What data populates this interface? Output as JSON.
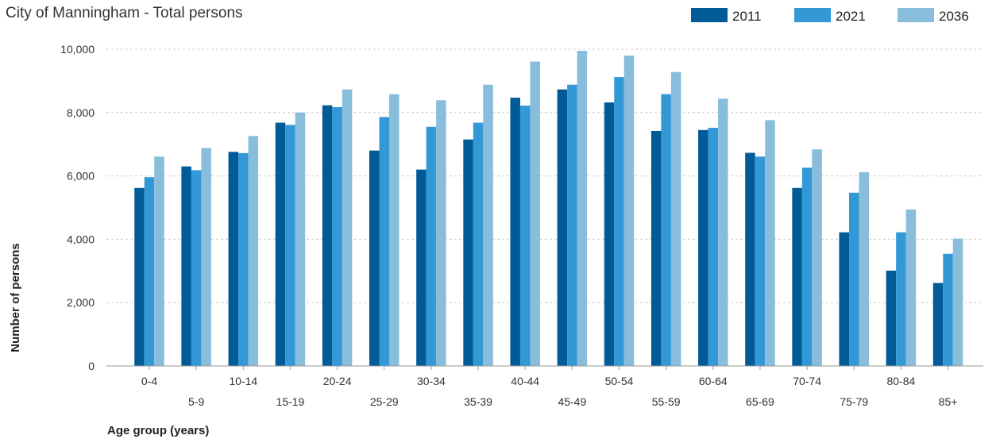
{
  "chart_data": {
    "type": "bar",
    "title": "City of Manningham - Total persons",
    "xlabel": "Age group (years)",
    "ylabel": "Number of persons",
    "ylim": [
      0,
      10000
    ],
    "yticks": [
      "0",
      "2,000",
      "4,000",
      "6,000",
      "8,000",
      "10,000"
    ],
    "ytick_values": [
      0,
      2000,
      4000,
      6000,
      8000,
      10000
    ],
    "grid": true,
    "legend_position": "top-right",
    "categories": [
      "0-4",
      "5-9",
      "10-14",
      "15-19",
      "20-24",
      "25-29",
      "30-34",
      "35-39",
      "40-44",
      "45-49",
      "50-54",
      "55-59",
      "60-64",
      "65-69",
      "70-74",
      "75-79",
      "80-84",
      "85+"
    ],
    "series": [
      {
        "name": "2011",
        "color": "#005b96",
        "values": [
          5620,
          6300,
          6760,
          7680,
          8230,
          6800,
          6200,
          7150,
          8470,
          8730,
          8320,
          7420,
          7450,
          6730,
          5620,
          4220,
          3010,
          2620
        ]
      },
      {
        "name": "2021",
        "color": "#3399d6",
        "values": [
          5960,
          6180,
          6720,
          7610,
          8170,
          7860,
          7550,
          7680,
          8220,
          8880,
          9120,
          8580,
          7520,
          6610,
          6260,
          5470,
          4220,
          3540
        ]
      },
      {
        "name": "2036",
        "color": "#88bddb",
        "values": [
          6610,
          6880,
          7260,
          8000,
          8730,
          8580,
          8390,
          8880,
          9610,
          9950,
          9800,
          9280,
          8440,
          7760,
          6840,
          6120,
          4940,
          4020
        ]
      }
    ]
  }
}
